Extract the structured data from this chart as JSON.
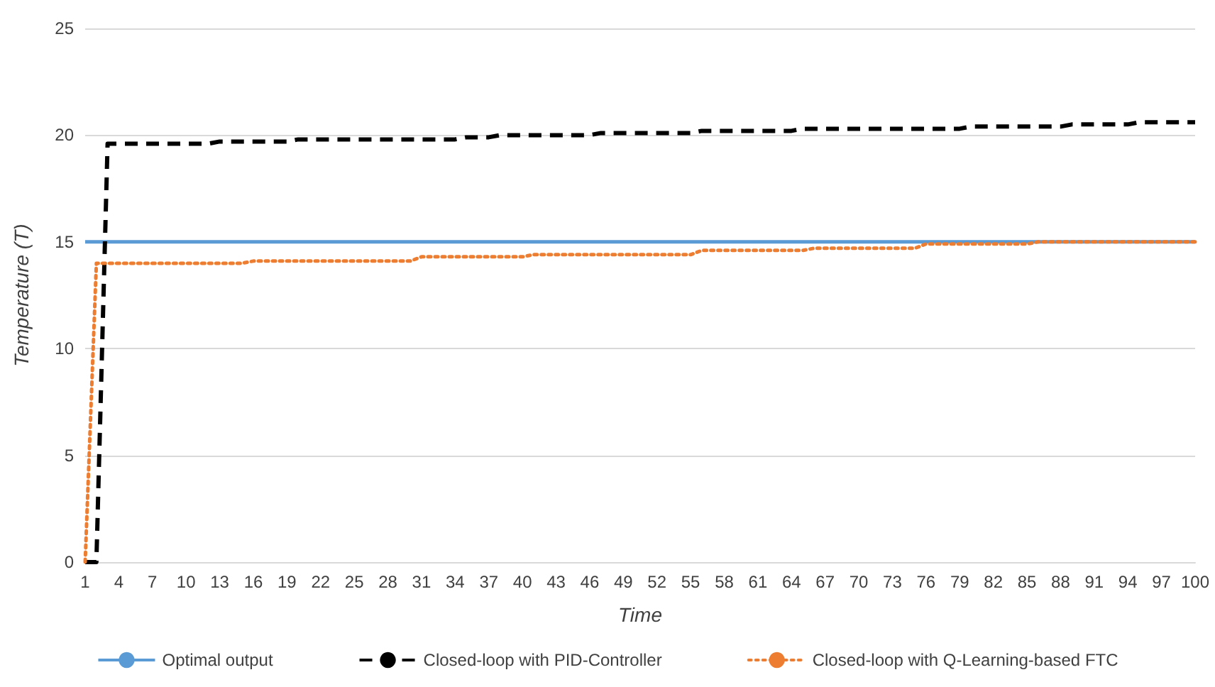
{
  "chart_data": {
    "type": "line",
    "xlabel": "Time",
    "ylabel": "Temperature (T)",
    "categories": [
      "1",
      null,
      null,
      "4",
      null,
      null,
      "7",
      null,
      null,
      "10",
      null,
      null,
      "13",
      null,
      null,
      "16",
      null,
      null,
      "19",
      null,
      null,
      "22",
      null,
      null,
      "25",
      null,
      null,
      "28",
      null,
      null,
      "31",
      null,
      null,
      "34",
      null,
      null,
      "37",
      null,
      null,
      "40",
      null,
      null,
      "43",
      null,
      null,
      "46",
      null,
      null,
      "49",
      null,
      null,
      "52",
      null,
      null,
      "55",
      null,
      null,
      "58",
      null,
      null,
      "61",
      null,
      null,
      "64",
      null,
      null,
      "67",
      null,
      null,
      "70",
      null,
      null,
      "73",
      null,
      null,
      "76",
      null,
      null,
      "79",
      null,
      null,
      "82",
      null,
      null,
      "85",
      null,
      null,
      "88",
      null,
      null,
      "91",
      null,
      null,
      "94",
      null,
      null,
      "97",
      null,
      null,
      "100"
    ],
    "series": [
      {
        "name": "Optimal output",
        "color": "#5b9bd5",
        "line_style": "solid",
        "values": [
          15,
          15,
          15,
          15,
          15,
          15,
          15,
          15,
          15,
          15,
          15,
          15,
          15,
          15,
          15,
          15,
          15,
          15,
          15,
          15,
          15,
          15,
          15,
          15,
          15,
          15,
          15,
          15,
          15,
          15,
          15,
          15,
          15,
          15,
          15,
          15,
          15,
          15,
          15,
          15,
          15,
          15,
          15,
          15,
          15,
          15,
          15,
          15,
          15,
          15,
          15,
          15,
          15,
          15,
          15,
          15,
          15,
          15,
          15,
          15,
          15,
          15,
          15,
          15,
          15,
          15,
          15,
          15,
          15,
          15,
          15,
          15,
          15,
          15,
          15,
          15,
          15,
          15,
          15,
          15,
          15,
          15,
          15,
          15,
          15,
          15,
          15,
          15,
          15,
          15,
          15,
          15,
          15,
          15,
          15,
          15,
          15,
          15,
          15,
          15
        ]
      },
      {
        "name": "Closed-loop with PID-Controller",
        "color": "#000000",
        "line_style": "dashed",
        "values": [
          0,
          0,
          19.6,
          19.6,
          19.6,
          19.6,
          19.6,
          19.6,
          19.6,
          19.6,
          19.6,
          19.6,
          19.7,
          19.7,
          19.7,
          19.7,
          19.7,
          19.7,
          19.7,
          19.8,
          19.8,
          19.8,
          19.8,
          19.8,
          19.8,
          19.8,
          19.8,
          19.8,
          19.8,
          19.8,
          19.8,
          19.8,
          19.8,
          19.8,
          19.9,
          19.9,
          19.9,
          20,
          20,
          20,
          20,
          20,
          20,
          20,
          20,
          20,
          20.1,
          20.1,
          20.1,
          20.1,
          20.1,
          20.1,
          20.1,
          20.1,
          20.1,
          20.2,
          20.2,
          20.2,
          20.2,
          20.2,
          20.2,
          20.2,
          20.2,
          20.2,
          20.3,
          20.3,
          20.3,
          20.3,
          20.3,
          20.3,
          20.3,
          20.3,
          20.3,
          20.3,
          20.3,
          20.3,
          20.3,
          20.3,
          20.3,
          20.4,
          20.4,
          20.4,
          20.4,
          20.4,
          20.4,
          20.4,
          20.4,
          20.4,
          20.5,
          20.5,
          20.5,
          20.5,
          20.5,
          20.5,
          20.6,
          20.6,
          20.6,
          20.6,
          20.6,
          20.6
        ]
      },
      {
        "name": "Closed-loop with Q-Learning-based FTC",
        "color": "#ed7d31",
        "line_style": "dotted",
        "values": [
          0,
          14,
          14,
          14,
          14,
          14,
          14,
          14,
          14,
          14,
          14,
          14,
          14,
          14,
          14,
          14.1,
          14.1,
          14.1,
          14.1,
          14.1,
          14.1,
          14.1,
          14.1,
          14.1,
          14.1,
          14.1,
          14.1,
          14.1,
          14.1,
          14.1,
          14.3,
          14.3,
          14.3,
          14.3,
          14.3,
          14.3,
          14.3,
          14.3,
          14.3,
          14.3,
          14.4,
          14.4,
          14.4,
          14.4,
          14.4,
          14.4,
          14.4,
          14.4,
          14.4,
          14.4,
          14.4,
          14.4,
          14.4,
          14.4,
          14.4,
          14.6,
          14.6,
          14.6,
          14.6,
          14.6,
          14.6,
          14.6,
          14.6,
          14.6,
          14.6,
          14.7,
          14.7,
          14.7,
          14.7,
          14.7,
          14.7,
          14.7,
          14.7,
          14.7,
          14.7,
          14.9,
          14.9,
          14.9,
          14.9,
          14.9,
          14.9,
          14.9,
          14.9,
          14.9,
          14.9,
          15,
          15,
          15,
          15,
          15,
          15,
          15,
          15,
          15,
          15,
          15,
          15,
          15,
          15,
          15
        ]
      }
    ],
    "ylim": [
      0,
      25
    ],
    "yticks": [
      0,
      5,
      10,
      15,
      20,
      25
    ],
    "grid": "y",
    "legend": "bottom",
    "marker": "none"
  }
}
